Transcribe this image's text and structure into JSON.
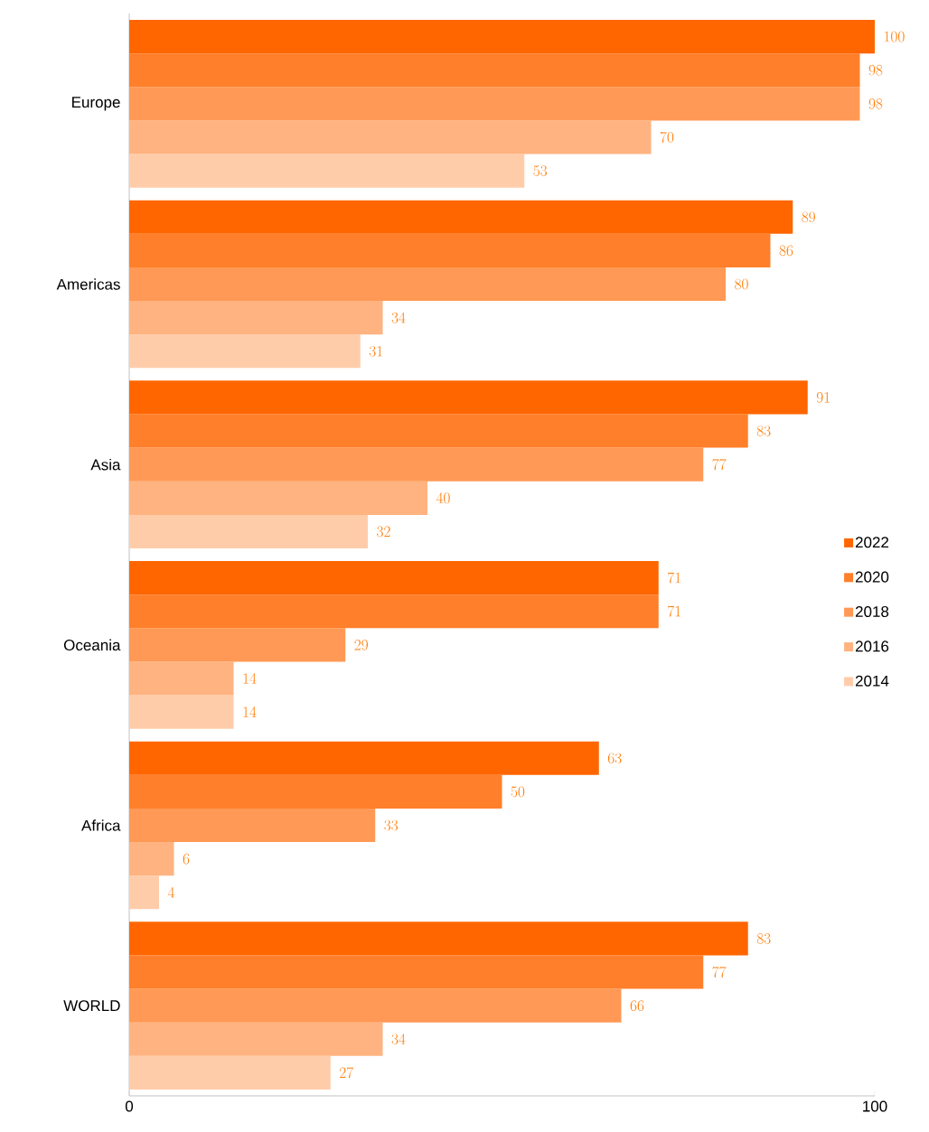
{
  "chart_data": {
    "type": "bar",
    "orientation": "horizontal",
    "categories": [
      "Europe",
      "Americas",
      "Asia",
      "Oceania",
      "Africa",
      "WORLD"
    ],
    "series": [
      {
        "name": "2022",
        "color": "#ff6600",
        "values": [
          100,
          89,
          91,
          71,
          63,
          83
        ]
      },
      {
        "name": "2020",
        "color": "#ff7f2a",
        "values": [
          98,
          86,
          83,
          71,
          50,
          77
        ]
      },
      {
        "name": "2018",
        "color": "#ff9955",
        "values": [
          98,
          80,
          77,
          29,
          33,
          66
        ]
      },
      {
        "name": "2016",
        "color": "#ffb380",
        "values": [
          70,
          34,
          40,
          14,
          6,
          34
        ]
      },
      {
        "name": "2014",
        "color": "#ffccaa",
        "values": [
          53,
          31,
          32,
          14,
          4,
          27
        ]
      }
    ],
    "xlim": [
      0,
      100
    ],
    "xticks": [
      0,
      100
    ],
    "data_labels": true,
    "legend": "right",
    "grid": false
  }
}
